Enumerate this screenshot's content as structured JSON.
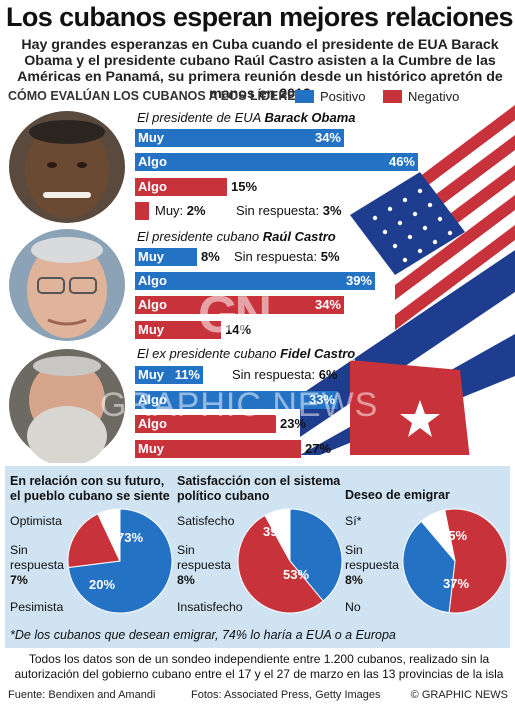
{
  "title": "Los cubanos esperan mejores relaciones con EUA",
  "subtitle": "Hay grandes esperanzas en Cuba cuando el presidente de EUA Barack Obama y el presidente cubano Raúl Castro asisten a la Cumbre de las Américas en Panamá, su primera reunión desde un histórico apretón de manos en 2013",
  "ratings_heading": "CÓMO EVALÚAN LOS CUBANOS A LOS LÍDERES",
  "legend": {
    "positive": "Positivo",
    "negative": "Negativo"
  },
  "colors": {
    "positive": "#2372c4",
    "negative": "#c8323a",
    "panel": "#cfe3f3"
  },
  "watermark": {
    "logo": "GN",
    "text": "GRAPHIC NEWS"
  },
  "chart_data": [
    {
      "type": "bar",
      "leaders": [
        {
          "label_prefix": "El presidente de EUA",
          "name": "Barack Obama",
          "bars": [
            {
              "label": "Muy",
              "sentiment": "positive",
              "value": 34,
              "value_text": "34%"
            },
            {
              "label": "Algo",
              "sentiment": "positive",
              "value": 46,
              "value_text": "46%"
            },
            {
              "label": "Algo",
              "sentiment": "negative",
              "value": 15,
              "value_text": "15%"
            }
          ],
          "muy_negative": {
            "label": "Muy:",
            "value": 2,
            "value_text": "2%"
          },
          "no_answer": {
            "label": "Sin respuesta:",
            "value": 3,
            "value_text": "3%"
          }
        },
        {
          "label_prefix": "El presidente cubano",
          "name": "Raúl Castro",
          "bars": [
            {
              "label": "Muy",
              "sentiment": "positive",
              "value": 8,
              "value_text": "8%"
            },
            {
              "label": "Algo",
              "sentiment": "positive",
              "value": 39,
              "value_text": "39%"
            },
            {
              "label": "Algo",
              "sentiment": "negative",
              "value": 34,
              "value_text": "34%"
            },
            {
              "label": "Muy",
              "sentiment": "negative",
              "value": 14,
              "value_text": "14%"
            }
          ],
          "no_answer": {
            "label": "Sin respuesta:",
            "value": 5,
            "value_text": "5%"
          }
        },
        {
          "label_prefix": "El ex presidente cubano",
          "name": "Fidel Castro",
          "bars": [
            {
              "label": "Muy",
              "sentiment": "positive",
              "value": 11,
              "value_text": "11%"
            },
            {
              "label": "Algo",
              "sentiment": "positive",
              "value": 33,
              "value_text": "33%"
            },
            {
              "label": "Algo",
              "sentiment": "negative",
              "value": 23,
              "value_text": "23%"
            },
            {
              "label": "Muy",
              "sentiment": "negative",
              "value": 27,
              "value_text": "27%"
            }
          ],
          "no_answer": {
            "label": "Sin respuesta:",
            "value": 6,
            "value_text": "6%"
          }
        }
      ]
    },
    {
      "type": "pie",
      "title": "En relación con su futuro, el pueblo cubano se siente",
      "slices": [
        {
          "name": "Optimista",
          "value": 73,
          "value_text": "73%",
          "color": "#2372c4"
        },
        {
          "name": "Pesimista",
          "value": 20,
          "value_text": "20%",
          "color": "#c8323a"
        },
        {
          "name": "Sin respuesta",
          "value": 7,
          "value_text": "7%",
          "color": "#ffffff"
        }
      ]
    },
    {
      "type": "pie",
      "title": "Satisfacción con el sistema político cubano",
      "slices": [
        {
          "name": "Satisfecho",
          "value": 39,
          "value_text": "39%",
          "color": "#2372c4"
        },
        {
          "name": "Insatisfecho",
          "value": 53,
          "value_text": "53%",
          "color": "#c8323a"
        },
        {
          "name": "Sin respuesta",
          "value": 8,
          "value_text": "8%",
          "color": "#ffffff"
        }
      ]
    },
    {
      "type": "pie",
      "title": "Deseo de emigrar",
      "slices": [
        {
          "name": "Sí*",
          "value": 55,
          "value_text": "55%",
          "color": "#c8323a"
        },
        {
          "name": "No",
          "value": 37,
          "value_text": "37%",
          "color": "#2372c4"
        },
        {
          "name": "Sin respuesta",
          "value": 8,
          "value_text": "8%",
          "color": "#ffffff"
        }
      ]
    }
  ],
  "footnote": "*De los cubanos que desean emigrar, 74% lo haría a EUA o a Europa",
  "survey_note": "Todos los datos son de un sondeo independiente entre 1.200 cubanos, realizado sin la autorización del gobierno cubano entre el 17 y el 27 de marzo en las 13 provincias de la isla",
  "footer": {
    "source": "Fuente: Bendixen and Amandi",
    "credits": "Fotos: Associated Press, Getty Images",
    "copyright": "© GRAPHIC NEWS"
  }
}
